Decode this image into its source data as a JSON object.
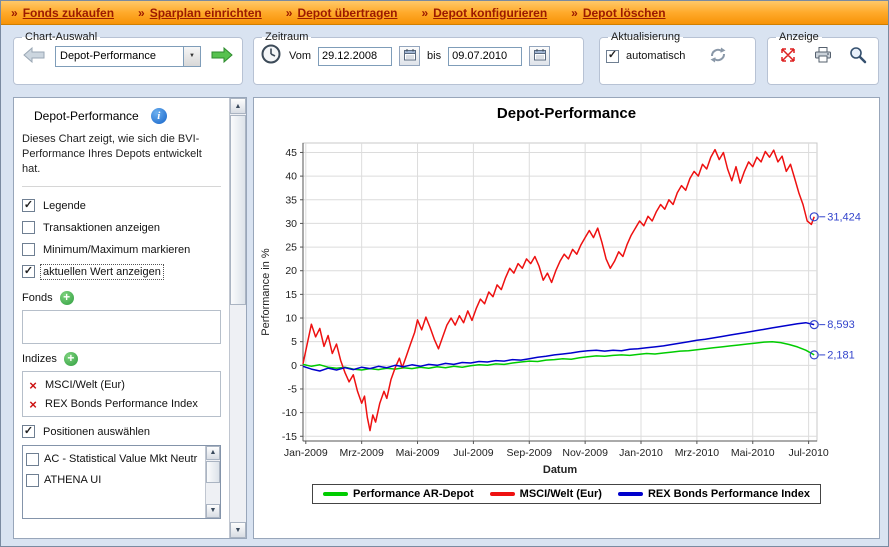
{
  "menubar": {
    "bullet": "»",
    "items": [
      {
        "label": "Fonds zukaufen"
      },
      {
        "label": "Sparplan einrichten"
      },
      {
        "label": "Depot übertragen"
      },
      {
        "label": "Depot konfigurieren"
      },
      {
        "label": "Depot löschen"
      }
    ]
  },
  "toolbar": {
    "chart_select": {
      "legend": "Chart-Auswahl",
      "dropdown_value": "Depot-Performance"
    },
    "period": {
      "legend": "Zeitraum",
      "from_label": "Vom",
      "from_value": "29.12.2008",
      "to_label": "bis",
      "to_value": "09.07.2010"
    },
    "refresh": {
      "legend": "Aktualisierung",
      "checkbox_label": "automatisch",
      "checked": true
    },
    "display": {
      "legend": "Anzeige"
    }
  },
  "icons": {
    "previous-chart": "left-arrow-gray",
    "next-chart": "right-arrow-green",
    "clock": "clock-face",
    "calendar": "calendar-grid",
    "refresh": "circular-arrows",
    "maximize": "red-diagonal-arrows",
    "print": "printer",
    "zoom": "magnifier",
    "info": "blue-info-circle",
    "add": "green-plus-circle",
    "remove": "red-x",
    "dropdown": "down-triangle"
  },
  "sidebar": {
    "title": "Depot-Performance",
    "description": "Dieses Chart zeigt, wie sich die BVI-Performance Ihres Depots entwickelt hat.",
    "options": [
      {
        "label": "Legende",
        "checked": true
      },
      {
        "label": "Transaktionen anzeigen",
        "checked": false
      },
      {
        "label": "Minimum/Maximum markieren",
        "checked": false
      },
      {
        "label": "aktuellen Wert anzeigen",
        "checked": true,
        "focused": true
      }
    ],
    "fonds": {
      "label": "Fonds",
      "items": []
    },
    "indizes": {
      "label": "Indizes",
      "items": [
        {
          "label": "MSCI/Welt (Eur)"
        },
        {
          "label": "REX Bonds Performance Index"
        }
      ]
    },
    "positions": {
      "label": "Positionen auswählen",
      "checked": true,
      "items": [
        {
          "label": "AC - Statistical Value Mkt Neutr",
          "checked": false
        },
        {
          "label": "ATHENA UI",
          "checked": false
        }
      ]
    }
  },
  "chart_data": {
    "type": "line",
    "title": "Depot-Performance",
    "xlabel": "Datum",
    "ylabel": "Performance in %",
    "ylim": [
      -16,
      47
    ],
    "xlim": [
      0,
      18.4
    ],
    "yticks": [
      -15,
      -10,
      -5,
      0,
      5,
      10,
      15,
      20,
      25,
      30,
      35,
      40,
      45
    ],
    "xticks": [
      {
        "pos": 0.1,
        "label": "Jan-2009"
      },
      {
        "pos": 2.1,
        "label": "Mrz-2009"
      },
      {
        "pos": 4.1,
        "label": "Mai-2009"
      },
      {
        "pos": 6.1,
        "label": "Jul-2009"
      },
      {
        "pos": 8.1,
        "label": "Sep-2009"
      },
      {
        "pos": 10.1,
        "label": "Nov-2009"
      },
      {
        "pos": 12.1,
        "label": "Jan-2010"
      },
      {
        "pos": 14.1,
        "label": "Mrz-2010"
      },
      {
        "pos": 16.1,
        "label": "Mai-2010"
      },
      {
        "pos": 18.1,
        "label": "Jul-2010"
      }
    ],
    "grid": true,
    "legend_position": "bottom",
    "annotation_color": "#3344cc",
    "series": [
      {
        "name": "Performance AR-Depot",
        "color": "#00cc00",
        "end_label": "2,181",
        "points": [
          [
            0.0,
            0.2
          ],
          [
            0.3,
            -0.2
          ],
          [
            0.6,
            0.1
          ],
          [
            0.9,
            -0.4
          ],
          [
            1.2,
            -0.6
          ],
          [
            1.5,
            -0.4
          ],
          [
            1.8,
            -0.8
          ],
          [
            2.1,
            -1.0
          ],
          [
            2.4,
            -0.7
          ],
          [
            2.7,
            -0.9
          ],
          [
            3.0,
            -0.6
          ],
          [
            3.3,
            -0.8
          ],
          [
            3.6,
            -0.5
          ],
          [
            3.9,
            -0.7
          ],
          [
            4.2,
            -0.4
          ],
          [
            4.5,
            -0.6
          ],
          [
            4.8,
            -0.3
          ],
          [
            5.1,
            -0.5
          ],
          [
            5.4,
            -0.2
          ],
          [
            5.7,
            -0.4
          ],
          [
            6.0,
            -0.1
          ],
          [
            6.3,
            0.1
          ],
          [
            6.6,
            0.0
          ],
          [
            6.9,
            0.3
          ],
          [
            7.2,
            0.2
          ],
          [
            7.5,
            0.5
          ],
          [
            7.8,
            0.7
          ],
          [
            8.1,
            0.9
          ],
          [
            8.4,
            0.8
          ],
          [
            8.7,
            1.1
          ],
          [
            9.0,
            1.2
          ],
          [
            9.3,
            1.4
          ],
          [
            9.6,
            1.3
          ],
          [
            9.9,
            1.6
          ],
          [
            10.2,
            1.8
          ],
          [
            10.5,
            2.0
          ],
          [
            10.8,
            1.9
          ],
          [
            11.1,
            2.1
          ],
          [
            11.4,
            2.2
          ],
          [
            11.7,
            2.1
          ],
          [
            12.0,
            2.3
          ],
          [
            12.3,
            2.5
          ],
          [
            12.6,
            2.4
          ],
          [
            12.9,
            2.6
          ],
          [
            13.2,
            2.8
          ],
          [
            13.5,
            3.0
          ],
          [
            13.8,
            3.1
          ],
          [
            14.1,
            3.3
          ],
          [
            14.4,
            3.5
          ],
          [
            14.7,
            3.7
          ],
          [
            15.0,
            3.9
          ],
          [
            15.3,
            4.1
          ],
          [
            15.6,
            4.3
          ],
          [
            15.9,
            4.5
          ],
          [
            16.2,
            4.7
          ],
          [
            16.5,
            4.9
          ],
          [
            16.8,
            5.0
          ],
          [
            17.1,
            4.8
          ],
          [
            17.4,
            4.4
          ],
          [
            17.7,
            3.9
          ],
          [
            18.0,
            3.2
          ],
          [
            18.3,
            2.2
          ]
        ]
      },
      {
        "name": "MSCI/Welt (Eur)",
        "color": "#ee1111",
        "end_label": "31,424",
        "points": [
          [
            0.0,
            0.3
          ],
          [
            0.15,
            4.5
          ],
          [
            0.3,
            8.7
          ],
          [
            0.45,
            6.0
          ],
          [
            0.6,
            7.8
          ],
          [
            0.75,
            4.0
          ],
          [
            0.9,
            6.3
          ],
          [
            1.05,
            2.5
          ],
          [
            1.2,
            4.5
          ],
          [
            1.35,
            1.0
          ],
          [
            1.5,
            -1.5
          ],
          [
            1.65,
            -3.5
          ],
          [
            1.8,
            -2.0
          ],
          [
            1.95,
            -5.5
          ],
          [
            2.1,
            -8.0
          ],
          [
            2.2,
            -6.5
          ],
          [
            2.3,
            -11.0
          ],
          [
            2.4,
            -13.8
          ],
          [
            2.5,
            -10.5
          ],
          [
            2.6,
            -12.0
          ],
          [
            2.75,
            -8.0
          ],
          [
            2.9,
            -5.5
          ],
          [
            3.0,
            -7.0
          ],
          [
            3.15,
            -3.0
          ],
          [
            3.3,
            -0.5
          ],
          [
            3.45,
            1.5
          ],
          [
            3.55,
            -0.5
          ],
          [
            3.7,
            2.0
          ],
          [
            3.85,
            4.5
          ],
          [
            4.0,
            7.0
          ],
          [
            4.1,
            9.6
          ],
          [
            4.25,
            7.5
          ],
          [
            4.4,
            10.2
          ],
          [
            4.55,
            8.0
          ],
          [
            4.7,
            5.5
          ],
          [
            4.85,
            3.5
          ],
          [
            5.0,
            6.0
          ],
          [
            5.15,
            8.5
          ],
          [
            5.3,
            10.0
          ],
          [
            5.45,
            8.5
          ],
          [
            5.6,
            10.5
          ],
          [
            5.75,
            9.0
          ],
          [
            5.9,
            11.5
          ],
          [
            6.05,
            9.5
          ],
          [
            6.2,
            12.0
          ],
          [
            6.35,
            14.0
          ],
          [
            6.5,
            13.0
          ],
          [
            6.65,
            15.5
          ],
          [
            6.8,
            14.5
          ],
          [
            6.95,
            17.0
          ],
          [
            7.1,
            16.0
          ],
          [
            7.25,
            18.5
          ],
          [
            7.4,
            20.5
          ],
          [
            7.55,
            19.5
          ],
          [
            7.7,
            21.5
          ],
          [
            7.85,
            20.5
          ],
          [
            8.0,
            22.5
          ],
          [
            8.15,
            21.5
          ],
          [
            8.3,
            23.0
          ],
          [
            8.45,
            21.0
          ],
          [
            8.6,
            18.0
          ],
          [
            8.75,
            19.5
          ],
          [
            8.9,
            17.5
          ],
          [
            9.05,
            20.0
          ],
          [
            9.2,
            22.0
          ],
          [
            9.35,
            23.5
          ],
          [
            9.5,
            22.5
          ],
          [
            9.65,
            24.5
          ],
          [
            9.8,
            23.5
          ],
          [
            9.95,
            25.5
          ],
          [
            10.1,
            27.0
          ],
          [
            10.25,
            28.5
          ],
          [
            10.4,
            27.0
          ],
          [
            10.55,
            29.0
          ],
          [
            10.7,
            26.0
          ],
          [
            10.85,
            22.5
          ],
          [
            11.0,
            20.5
          ],
          [
            11.15,
            22.0
          ],
          [
            11.3,
            24.0
          ],
          [
            11.45,
            23.0
          ],
          [
            11.6,
            25.5
          ],
          [
            11.75,
            27.5
          ],
          [
            11.9,
            29.0
          ],
          [
            12.05,
            30.5
          ],
          [
            12.2,
            29.5
          ],
          [
            12.35,
            31.5
          ],
          [
            12.5,
            30.5
          ],
          [
            12.65,
            32.5
          ],
          [
            12.8,
            34.0
          ],
          [
            12.95,
            33.0
          ],
          [
            13.1,
            35.0
          ],
          [
            13.25,
            34.0
          ],
          [
            13.4,
            36.5
          ],
          [
            13.55,
            38.0
          ],
          [
            13.7,
            37.0
          ],
          [
            13.85,
            39.5
          ],
          [
            14.0,
            41.0
          ],
          [
            14.15,
            40.0
          ],
          [
            14.3,
            42.5
          ],
          [
            14.45,
            41.5
          ],
          [
            14.6,
            44.0
          ],
          [
            14.75,
            45.6
          ],
          [
            14.9,
            43.5
          ],
          [
            15.05,
            45.0
          ],
          [
            15.2,
            41.5
          ],
          [
            15.35,
            39.0
          ],
          [
            15.5,
            42.0
          ],
          [
            15.65,
            38.5
          ],
          [
            15.8,
            41.0
          ],
          [
            15.95,
            43.0
          ],
          [
            16.1,
            42.0
          ],
          [
            16.25,
            44.0
          ],
          [
            16.4,
            43.0
          ],
          [
            16.55,
            45.2
          ],
          [
            16.7,
            44.0
          ],
          [
            16.85,
            45.5
          ],
          [
            17.0,
            43.0
          ],
          [
            17.15,
            44.2
          ],
          [
            17.3,
            41.0
          ],
          [
            17.45,
            42.5
          ],
          [
            17.6,
            39.5
          ],
          [
            17.75,
            36.5
          ],
          [
            17.9,
            34.0
          ],
          [
            18.05,
            30.5
          ],
          [
            18.2,
            29.8
          ],
          [
            18.3,
            31.4
          ]
        ]
      },
      {
        "name": "REX Bonds Performance Index",
        "color": "#0000cc",
        "end_label": "8,593",
        "points": [
          [
            0.0,
            -0.2
          ],
          [
            0.3,
            -0.8
          ],
          [
            0.6,
            -1.2
          ],
          [
            0.9,
            -0.6
          ],
          [
            1.2,
            -1.0
          ],
          [
            1.5,
            -0.5
          ],
          [
            1.8,
            -0.9
          ],
          [
            2.1,
            -0.4
          ],
          [
            2.4,
            -0.7
          ],
          [
            2.7,
            -0.2
          ],
          [
            3.0,
            -0.5
          ],
          [
            3.3,
            0.0
          ],
          [
            3.6,
            -0.3
          ],
          [
            3.9,
            0.1
          ],
          [
            4.2,
            -0.2
          ],
          [
            4.5,
            0.2
          ],
          [
            4.8,
            0.0
          ],
          [
            5.1,
            0.4
          ],
          [
            5.4,
            0.2
          ],
          [
            5.7,
            0.6
          ],
          [
            6.0,
            0.5
          ],
          [
            6.3,
            0.8
          ],
          [
            6.6,
            0.7
          ],
          [
            6.9,
            1.0
          ],
          [
            7.2,
            0.9
          ],
          [
            7.5,
            1.2
          ],
          [
            7.8,
            1.1
          ],
          [
            8.1,
            1.4
          ],
          [
            8.4,
            1.7
          ],
          [
            8.7,
            1.9
          ],
          [
            9.0,
            2.2
          ],
          [
            9.3,
            2.4
          ],
          [
            9.6,
            2.6
          ],
          [
            9.9,
            2.9
          ],
          [
            10.2,
            3.1
          ],
          [
            10.5,
            3.2
          ],
          [
            10.8,
            3.0
          ],
          [
            11.1,
            3.2
          ],
          [
            11.4,
            3.1
          ],
          [
            11.7,
            3.4
          ],
          [
            12.0,
            3.5
          ],
          [
            12.3,
            3.7
          ],
          [
            12.6,
            3.9
          ],
          [
            12.9,
            4.1
          ],
          [
            13.2,
            4.4
          ],
          [
            13.5,
            4.7
          ],
          [
            13.8,
            5.0
          ],
          [
            14.1,
            5.3
          ],
          [
            14.4,
            5.5
          ],
          [
            14.7,
            5.8
          ],
          [
            15.0,
            6.1
          ],
          [
            15.3,
            6.4
          ],
          [
            15.6,
            6.7
          ],
          [
            15.9,
            7.0
          ],
          [
            16.2,
            7.3
          ],
          [
            16.5,
            7.6
          ],
          [
            16.8,
            7.9
          ],
          [
            17.1,
            8.2
          ],
          [
            17.4,
            8.5
          ],
          [
            17.7,
            8.8
          ],
          [
            18.0,
            9.0
          ],
          [
            18.15,
            8.8
          ],
          [
            18.3,
            8.6
          ]
        ]
      }
    ]
  }
}
